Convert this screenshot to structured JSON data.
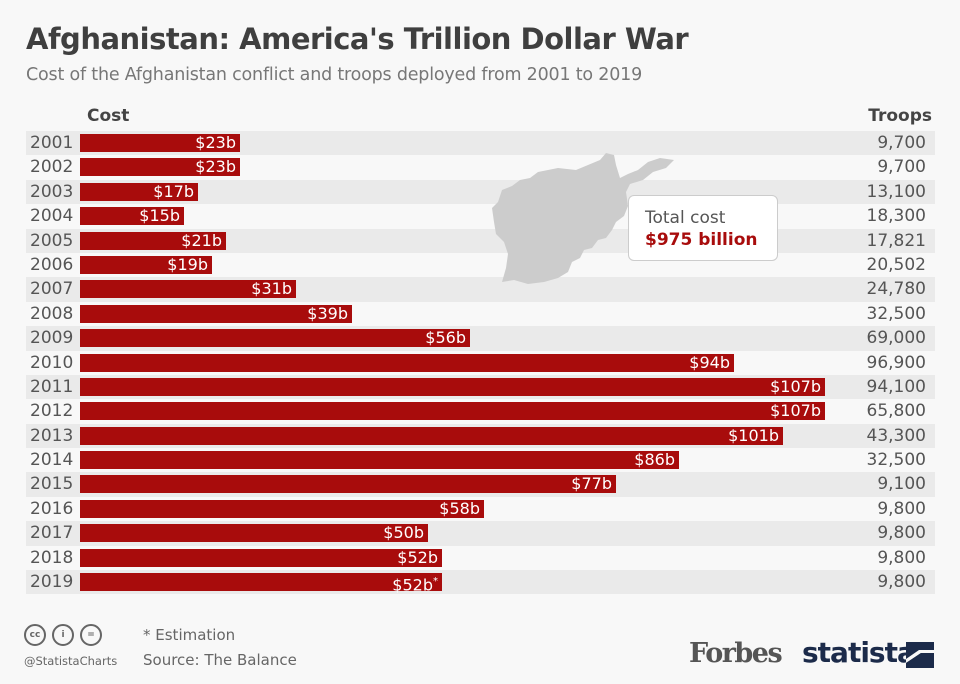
{
  "header": {
    "title": "Afghanistan: America's Trillion Dollar War",
    "subtitle": "Cost of the Afghanistan conflict and troops deployed from 2001 to 2019",
    "col_cost": "Cost",
    "col_troops": "Troops"
  },
  "callout": {
    "title": "Total cost",
    "value": "$975 billion"
  },
  "colors": {
    "bar": "#a80c0c",
    "callout_value": "#a80c0c",
    "map": "#cccccc",
    "statista": "#1c2b4a"
  },
  "chart_data": {
    "type": "bar",
    "orientation": "horizontal",
    "title": "Afghanistan: America's Trillion Dollar War",
    "subtitle": "Cost of the Afghanistan conflict and troops deployed from 2001 to 2019",
    "xlabel": "Cost",
    "ylabel": "",
    "unit": "billion USD",
    "categories": [
      "2001",
      "2002",
      "2003",
      "2004",
      "2005",
      "2006",
      "2007",
      "2008",
      "2009",
      "2010",
      "2011",
      "2012",
      "2013",
      "2014",
      "2015",
      "2016",
      "2017",
      "2018",
      "2019"
    ],
    "series": [
      {
        "name": "Cost",
        "values": [
          23,
          23,
          17,
          15,
          21,
          19,
          31,
          39,
          56,
          94,
          107,
          107,
          101,
          86,
          77,
          58,
          50,
          52,
          52
        ],
        "labels": [
          "$23b",
          "$23b",
          "$17b",
          "$15b",
          "$21b",
          "$19b",
          "$31b",
          "$39b",
          "$56b",
          "$94b",
          "$107b",
          "$107b",
          "$101b",
          "$86b",
          "$77b",
          "$58b",
          "$50b",
          "$52b",
          "$52b"
        ],
        "estimated": [
          false,
          false,
          false,
          false,
          false,
          false,
          false,
          false,
          false,
          false,
          false,
          false,
          false,
          false,
          false,
          false,
          false,
          false,
          true
        ]
      },
      {
        "name": "Troops",
        "values": [
          9700,
          9700,
          13100,
          18300,
          17821,
          20502,
          24780,
          32500,
          69000,
          96900,
          94100,
          65800,
          43300,
          32500,
          9100,
          9800,
          9800,
          9800,
          9800
        ],
        "labels": [
          "9,700",
          "9,700",
          "13,100",
          "18,300",
          "17,821",
          "20,502",
          "24,780",
          "32,500",
          "69,000",
          "96,900",
          "94,100",
          "65,800",
          "43,300",
          "32,500",
          "9,100",
          "9,800",
          "9,800",
          "9,800",
          "9,800"
        ]
      }
    ],
    "annotation": "Total cost $975 billion",
    "legend": "none",
    "grid": false
  },
  "footer": {
    "note": "* Estimation",
    "source": "Source: The Balance",
    "handle": "@StatistaCharts",
    "forbes": "Forbes",
    "statista": "statista",
    "icons": [
      "cc-icon",
      "attribution-icon",
      "no-derivatives-icon"
    ],
    "icon_glyphs": [
      "cc",
      "i",
      "="
    ]
  }
}
